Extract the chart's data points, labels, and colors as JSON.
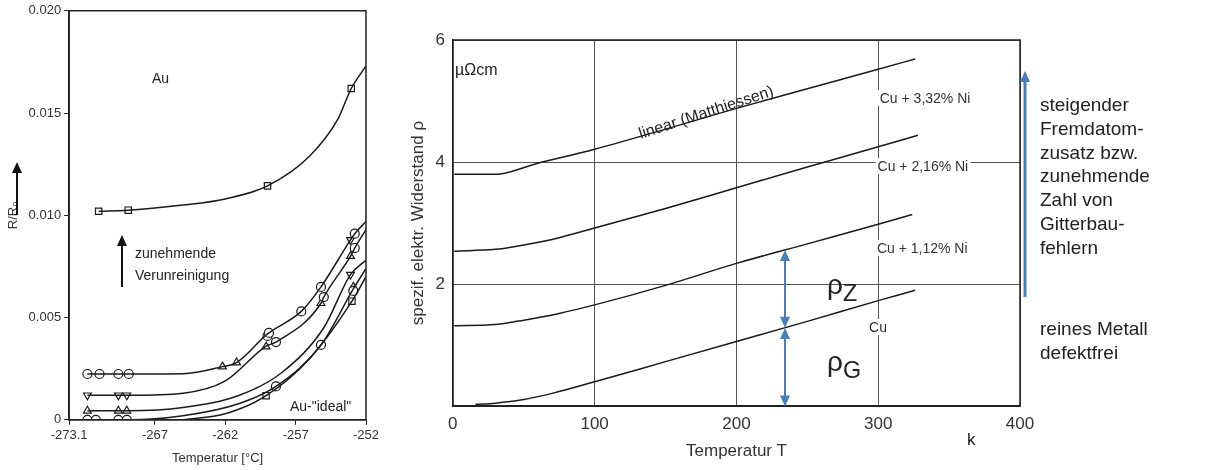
{
  "chart_data": [
    {
      "type": "line",
      "xlabel": "Temperatur [°C]",
      "ylabel": "R/R₀",
      "xlim": [
        -273.1,
        -252
      ],
      "ylim": [
        0,
        0.02
      ],
      "xticks": [
        -273.1,
        -267,
        -262,
        -257,
        -252
      ],
      "yticks": [
        0,
        {
          "value": 0.005,
          "label": "0.005"
        },
        {
          "value": 0.01,
          "label": "0.010"
        },
        {
          "value": 0.015,
          "label": "0.015"
        },
        {
          "value": 0.02,
          "label": "0.020"
        }
      ],
      "annotations": [
        "Au",
        "zunehmende\nVerunreinigung",
        "Au-\"ideal\""
      ],
      "series": [
        {
          "type": "line",
          "marker": "none",
          "color": "#1a1a1a",
          "x": [
            -271.0,
            -268.9,
            -265,
            -262,
            -259.0,
            -256,
            -254,
            -253.05,
            -252
          ],
          "values": [
            0.0102,
            0.01025,
            0.0105,
            0.0108,
            0.01144,
            0.0129,
            0.0147,
            0.0162,
            0.0173
          ]
        },
        {
          "type": "line",
          "marker": "none",
          "color": "#1a1a1a",
          "x": [
            -271.8,
            -268.86,
            -265,
            -262.2,
            -261.2,
            -259.0,
            -256.6,
            -255.2,
            -253.1,
            -252.8,
            -252
          ],
          "values": [
            0.00224,
            0.00224,
            0.00225,
            0.0026,
            0.0028,
            0.0042,
            0.0053,
            0.0065,
            0.0088,
            0.0091,
            0.0097
          ]
        },
        {
          "type": "line",
          "marker": "none",
          "color": "#1a1a1a",
          "x": [
            -271.8,
            -268.9,
            -265,
            -262,
            -259.1,
            -258.4,
            -255.2,
            -255.0,
            -253.1,
            -252.8,
            -252
          ],
          "values": [
            0.0012,
            0.0012,
            0.0013,
            0.0019,
            0.0036,
            0.0038,
            0.0057,
            0.006,
            0.008,
            0.0084,
            0.0093
          ]
        },
        {
          "type": "line",
          "marker": "none",
          "color": "#1a1a1a",
          "x": [
            -271.8,
            -268.9,
            -265,
            -261,
            -258,
            -255,
            -253.1,
            -252
          ],
          "values": [
            0.00044,
            0.00044,
            0.0006,
            0.0012,
            0.0023,
            0.0045,
            0.0071,
            0.0078
          ]
        },
        {
          "type": "line",
          "marker": "none",
          "color": "#1a1a1a",
          "x": [
            -271.8,
            -268.9,
            -265,
            -261,
            -258.4,
            -255.2,
            -252.9,
            -252
          ],
          "values": [
            0,
            0,
            0.0002,
            0.0008,
            0.00163,
            0.00366,
            0.0064,
            0.0074
          ]
        },
        {
          "type": "line",
          "marker": "none",
          "color": "#1a1a1a",
          "x": [
            -265,
            -262,
            -259.1,
            -256,
            -253.0,
            -252
          ],
          "values": [
            0,
            0.0003,
            0.00118,
            0.003,
            0.0058,
            0.007
          ]
        },
        {
          "type": "scatter",
          "marker": "square",
          "color": "#1a1a1a",
          "x": [
            -271.0,
            -268.9,
            -259.0,
            -253.05,
            -259.1,
            -253.0
          ],
          "values": [
            0.0102,
            0.01025,
            0.01144,
            0.0162,
            0.00118,
            0.0058
          ]
        },
        {
          "type": "scatter",
          "marker": "circle",
          "color": "#1a1a1a",
          "x": [
            -271.8,
            -270.94,
            -269.6,
            -268.86,
            -259.0,
            -258.9,
            -256.6,
            -255.2,
            -252.8,
            -258.4,
            -255.0,
            -252.8,
            -258.4,
            -255.2,
            -252.9,
            -271.8,
            -271.2,
            -269.6,
            -269.0
          ],
          "values": [
            0.00224,
            0.00224,
            0.00224,
            0.00224,
            0.0041,
            0.00425,
            0.0053,
            0.0065,
            0.0091,
            0.0038,
            0.006,
            0.0084,
            0.00163,
            0.00366,
            0.0063,
            0,
            0,
            0,
            0
          ]
        },
        {
          "type": "scatter",
          "marker": "triangle",
          "color": "#1a1a1a",
          "x": [
            -262.2,
            -261.2,
            -259.1,
            -255.2,
            -253.1,
            -271.8,
            -269.6,
            -269.0,
            -252.9
          ],
          "values": [
            0.0026,
            0.0028,
            0.00358,
            0.0057,
            0.008,
            0.00044,
            0.00044,
            0.00044,
            0.0065
          ]
        },
        {
          "type": "scatter",
          "marker": "triangle-down",
          "color": "#1a1a1a",
          "x": [
            -271.8,
            -269.6,
            -269.0,
            -253.1,
            -253.1
          ],
          "values": [
            0.0012,
            0.0012,
            0.0012,
            0.0088,
            0.0071
          ]
        }
      ]
    },
    {
      "type": "line",
      "xlabel": "Temperatur T",
      "ylabel": "spezif. elektr. Widerstand ρ",
      "xlim": [
        0,
        400
      ],
      "ylim": [
        0,
        6
      ],
      "xticks": [
        0,
        100,
        200,
        300,
        400
      ],
      "yticks": [
        {
          "value": 0,
          "label": null
        },
        2,
        4,
        6
      ],
      "grid": true,
      "annotations": [
        "linear (Matthiessen)",
        "ρ$_{Z}$",
        "ρ$_{G}$",
        "µΩcm",
        "k",
        "steigender\nFremdatom-\nzusatz bzw.\nzunehmende\nZahl von\nGitterbau-\nfehlern",
        "reines Metall\ndefektfrei"
      ],
      "series": [
        {
          "type": "line",
          "marker": "none",
          "name": "Cu + 3,32% Ni",
          "color": "#1a1a1a",
          "x": [
            1,
            30,
            60,
            100,
            150,
            200,
            250,
            300,
            326
          ],
          "values": [
            3.8,
            3.8,
            3.98,
            4.21,
            4.54,
            4.88,
            5.2,
            5.52,
            5.69
          ]
        },
        {
          "type": "line",
          "marker": "none",
          "name": "Cu + 2,16% Ni",
          "color": "#1a1a1a",
          "x": [
            1,
            30,
            50,
            75,
            100,
            150,
            200,
            250,
            300,
            328
          ],
          "values": [
            2.54,
            2.57,
            2.64,
            2.76,
            2.92,
            3.24,
            3.58,
            3.92,
            4.25,
            4.44
          ]
        },
        {
          "type": "line",
          "marker": "none",
          "name": "Cu + 1,12% Ni",
          "color": "#1a1a1a",
          "x": [
            1,
            30,
            50,
            75,
            100,
            150,
            200,
            250,
            300,
            324
          ],
          "values": [
            1.32,
            1.34,
            1.41,
            1.52,
            1.66,
            1.98,
            2.34,
            2.66,
            2.98,
            3.14
          ]
        },
        {
          "type": "line",
          "marker": "none",
          "name": "Cu",
          "color": "#1a1a1a",
          "x": [
            16,
            30,
            50,
            70,
            100,
            150,
            200,
            250,
            300,
            326
          ],
          "values": [
            0.03,
            0.05,
            0.11,
            0.21,
            0.4,
            0.73,
            1.06,
            1.39,
            1.73,
            1.9
          ]
        }
      ]
    }
  ]
}
